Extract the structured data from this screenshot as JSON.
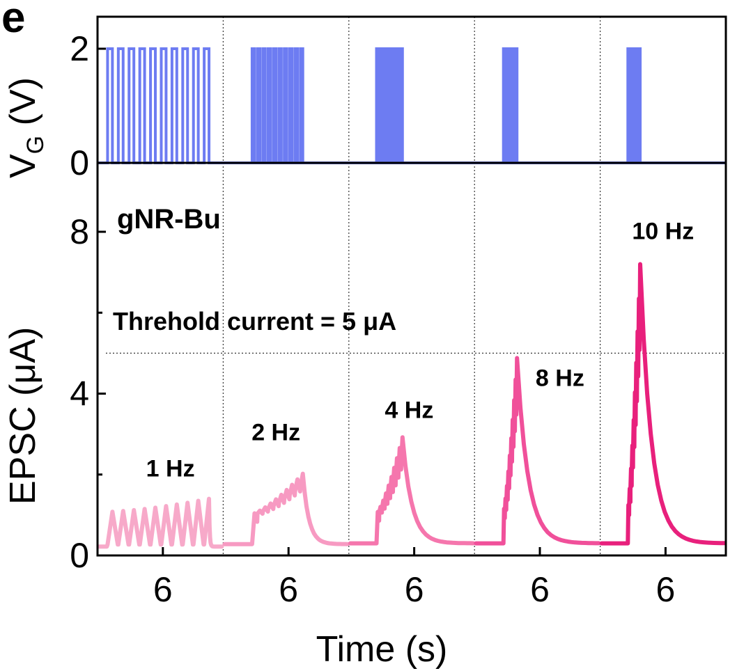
{
  "panel_label": "e",
  "chart_data": {
    "type": "line",
    "xlabel": "Time (s)",
    "x_tick_labels": [
      "6",
      "6",
      "6",
      "6",
      "6"
    ],
    "top_panel": {
      "ylabel_main": "V",
      "ylabel_sub": "G",
      "ylabel_unit": " (V)",
      "yticks": [
        0,
        2
      ],
      "ylim": [
        0,
        2.4
      ],
      "color": "#6d7cf2"
    },
    "bottom_panel": {
      "ylabel": "EPSC (μA)",
      "yticks": [
        0,
        4,
        8
      ],
      "ylim": [
        0,
        8.2
      ],
      "series_label": "gNR-Bu",
      "series_label_color": "#e8207c",
      "threshold": {
        "value": 5,
        "label": "Threhold current = 5 μA"
      }
    },
    "segments": [
      {
        "frequency": "1 Hz",
        "color": "#f7a9c9",
        "pulses": 10,
        "baseline": 0.22,
        "peaks": [
          1.08,
          1.1,
          1.12,
          1.15,
          1.18,
          1.22,
          1.26,
          1.3,
          1.35,
          1.4
        ]
      },
      {
        "frequency": "2 Hz",
        "color": "#f79ac2",
        "pulses": 10,
        "baseline": 0.28,
        "peak": 2.02
      },
      {
        "frequency": "4 Hz",
        "color": "#f576ad",
        "pulses": 10,
        "baseline": 0.3,
        "peak": 2.92
      },
      {
        "frequency": "8 Hz",
        "color": "#f0509a",
        "pulses": 10,
        "baseline": 0.3,
        "peak": 4.88
      },
      {
        "frequency": "10 Hz",
        "color": "#e8207c",
        "pulses": 10,
        "baseline": 0.3,
        "peak": 7.2
      }
    ]
  }
}
